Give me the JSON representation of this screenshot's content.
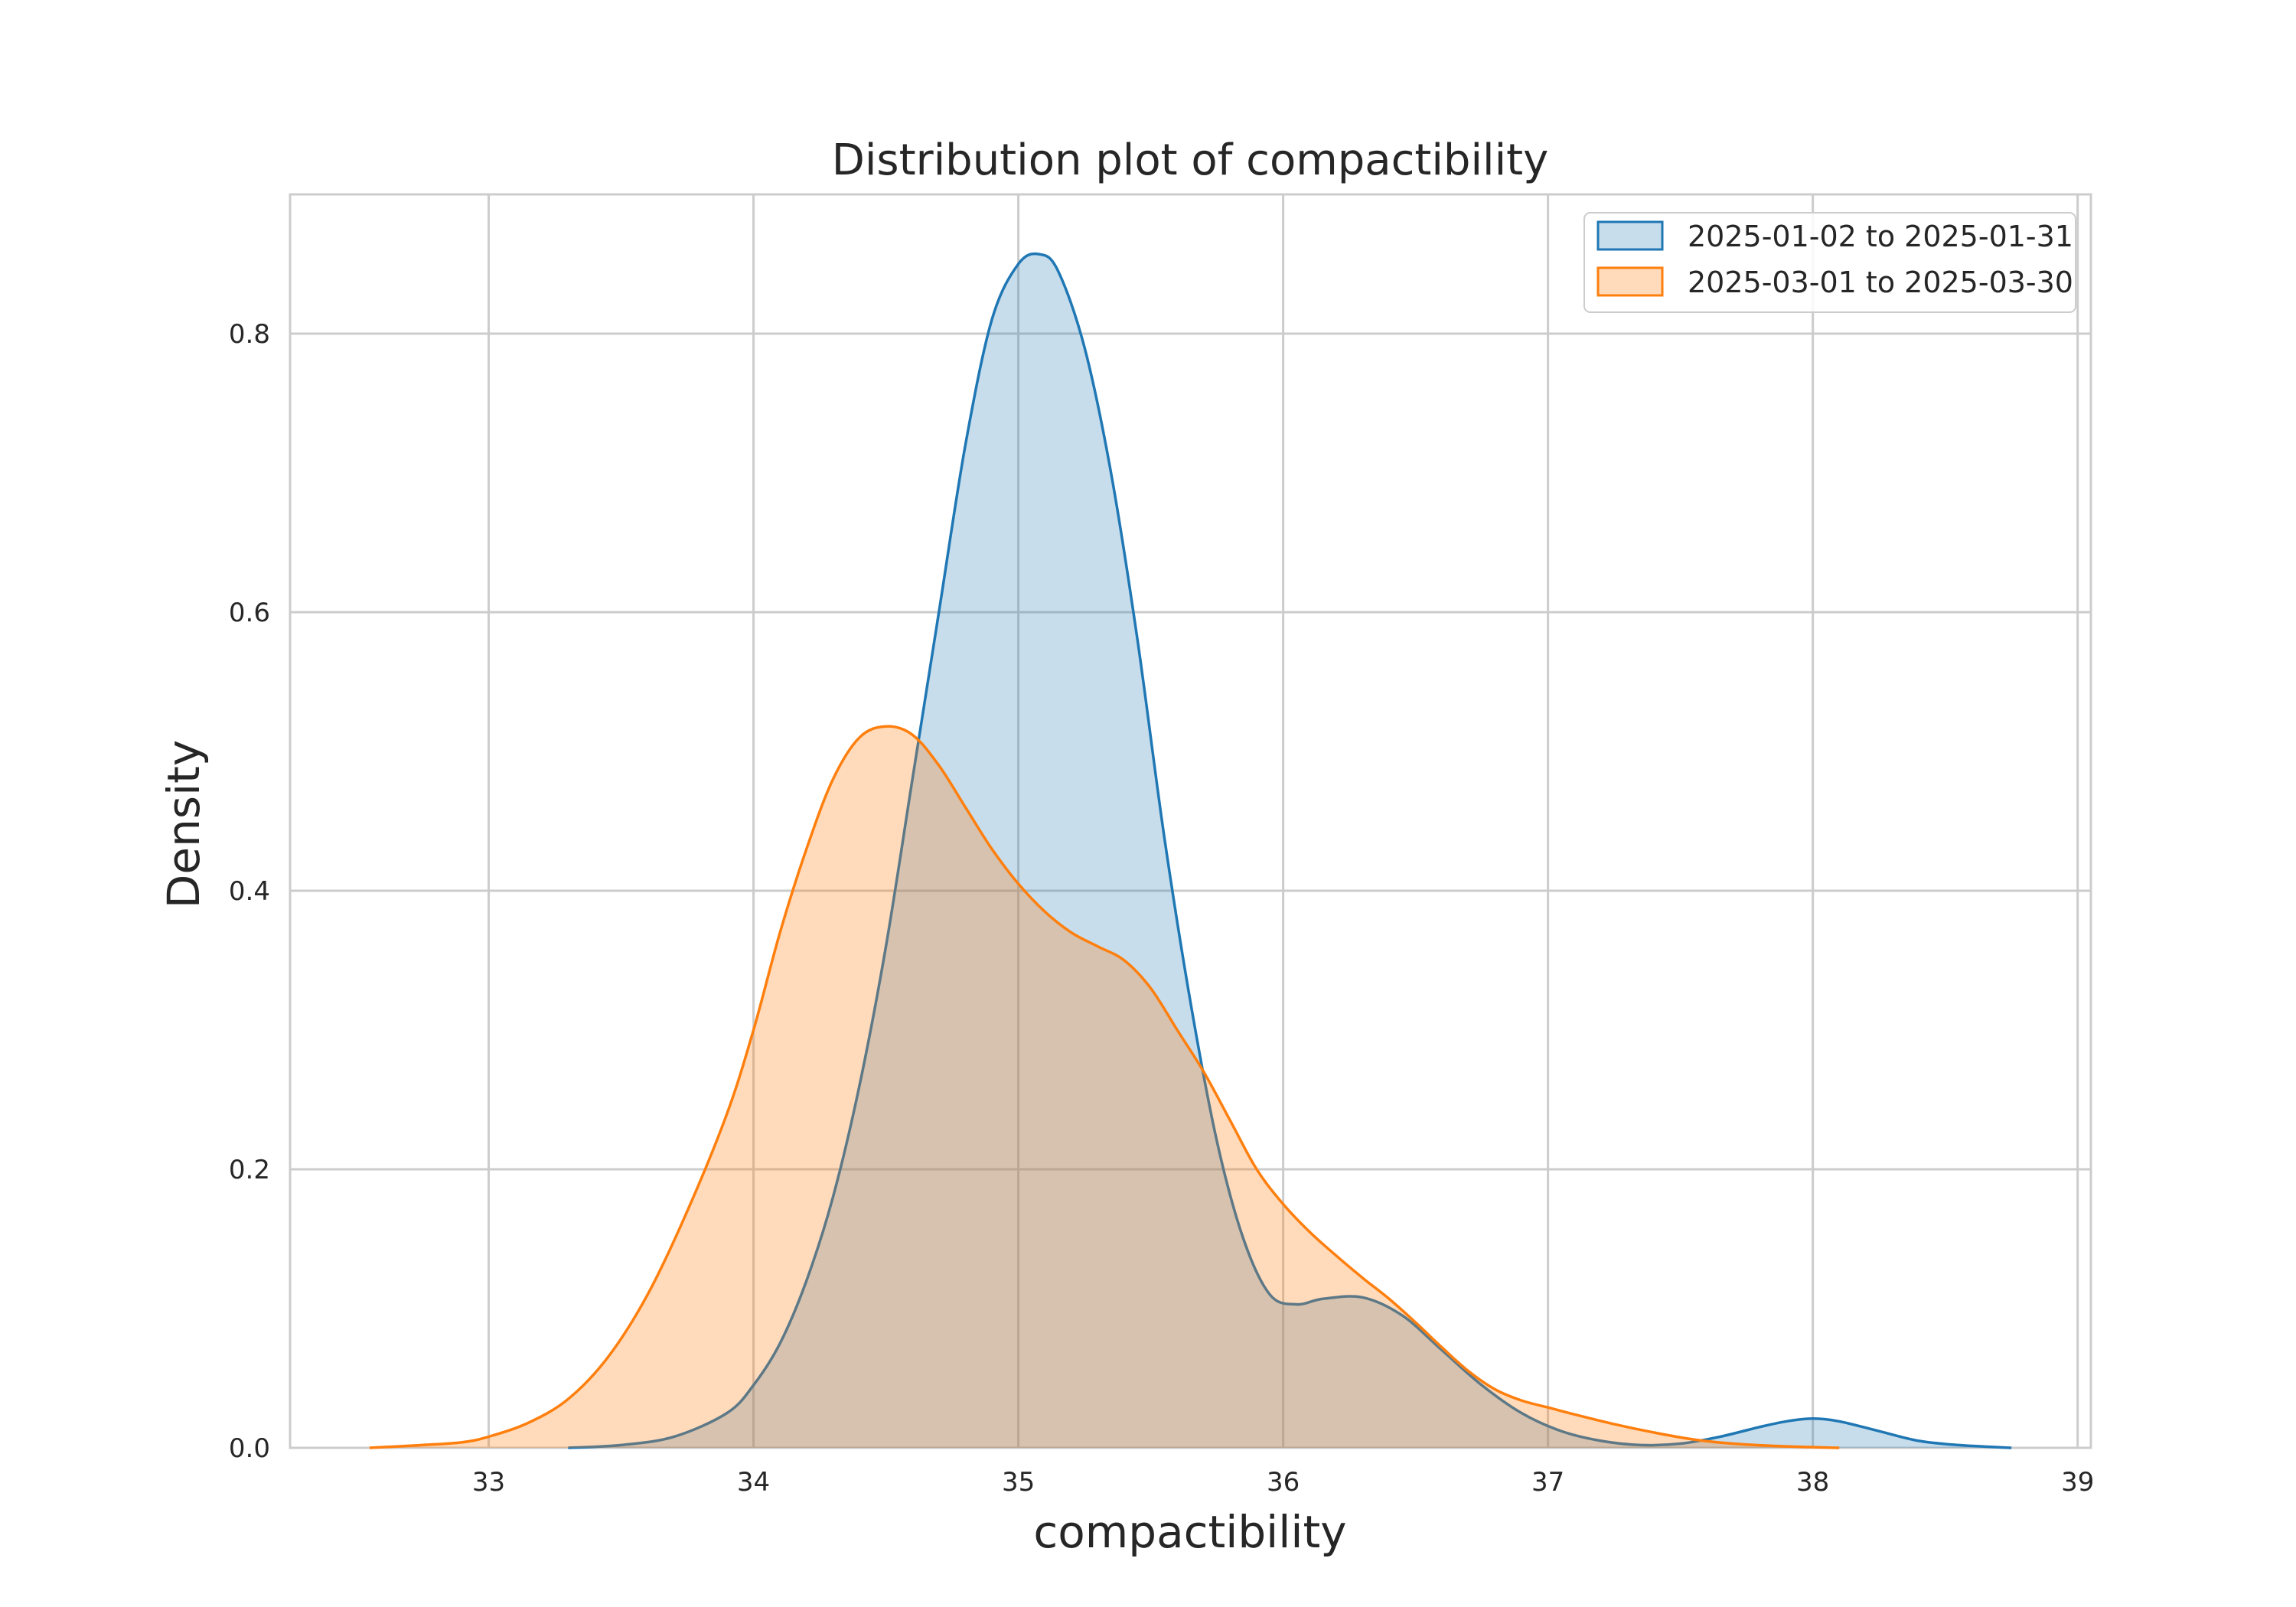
{
  "chart_data": {
    "type": "area",
    "title": "Distribution plot of compactibility",
    "xlabel": "compactibility",
    "ylabel": "Density",
    "xlim": [
      32.25,
      39.05
    ],
    "ylim": [
      0,
      0.9
    ],
    "x_ticks": [
      "33",
      "34",
      "35",
      "36",
      "37",
      "38",
      "39"
    ],
    "y_ticks": [
      "0.0",
      "0.2",
      "0.4",
      "0.6",
      "0.8"
    ],
    "grid": true,
    "legend_position": "top-right",
    "series": [
      {
        "name": "2025-01-02 to 2025-01-31",
        "color": "#1f77b4",
        "fill_opacity": 0.25,
        "points": [
          [
            33.3,
            0.0
          ],
          [
            33.5,
            0.002
          ],
          [
            33.7,
            0.008
          ],
          [
            33.9,
            0.025
          ],
          [
            34.0,
            0.045
          ],
          [
            34.1,
            0.075
          ],
          [
            34.2,
            0.12
          ],
          [
            34.3,
            0.18
          ],
          [
            34.4,
            0.26
          ],
          [
            34.5,
            0.36
          ],
          [
            34.6,
            0.48
          ],
          [
            34.7,
            0.6
          ],
          [
            34.8,
            0.72
          ],
          [
            34.9,
            0.81
          ],
          [
            35.0,
            0.85
          ],
          [
            35.08,
            0.857
          ],
          [
            35.15,
            0.845
          ],
          [
            35.25,
            0.79
          ],
          [
            35.35,
            0.7
          ],
          [
            35.45,
            0.58
          ],
          [
            35.55,
            0.44
          ],
          [
            35.65,
            0.32
          ],
          [
            35.75,
            0.22
          ],
          [
            35.85,
            0.15
          ],
          [
            35.95,
            0.11
          ],
          [
            36.05,
            0.103
          ],
          [
            36.15,
            0.107
          ],
          [
            36.3,
            0.108
          ],
          [
            36.45,
            0.095
          ],
          [
            36.6,
            0.07
          ],
          [
            36.75,
            0.045
          ],
          [
            36.9,
            0.025
          ],
          [
            37.05,
            0.012
          ],
          [
            37.2,
            0.005
          ],
          [
            37.35,
            0.002
          ],
          [
            37.5,
            0.003
          ],
          [
            37.65,
            0.008
          ],
          [
            37.8,
            0.015
          ],
          [
            37.9,
            0.019
          ],
          [
            38.0,
            0.021
          ],
          [
            38.1,
            0.019
          ],
          [
            38.25,
            0.012
          ],
          [
            38.4,
            0.005
          ],
          [
            38.55,
            0.002
          ],
          [
            38.75,
            0.0
          ]
        ]
      },
      {
        "name": "2025-03-01 to 2025-03-30",
        "color": "#ff7f0e",
        "fill_opacity": 0.28,
        "points": [
          [
            32.55,
            0.0
          ],
          [
            32.75,
            0.002
          ],
          [
            32.9,
            0.004
          ],
          [
            33.0,
            0.008
          ],
          [
            33.15,
            0.018
          ],
          [
            33.3,
            0.035
          ],
          [
            33.45,
            0.065
          ],
          [
            33.6,
            0.11
          ],
          [
            33.75,
            0.17
          ],
          [
            33.9,
            0.24
          ],
          [
            34.0,
            0.3
          ],
          [
            34.1,
            0.37
          ],
          [
            34.2,
            0.43
          ],
          [
            34.3,
            0.48
          ],
          [
            34.4,
            0.51
          ],
          [
            34.5,
            0.518
          ],
          [
            34.6,
            0.512
          ],
          [
            34.7,
            0.49
          ],
          [
            34.8,
            0.46
          ],
          [
            34.9,
            0.43
          ],
          [
            35.0,
            0.405
          ],
          [
            35.1,
            0.385
          ],
          [
            35.2,
            0.37
          ],
          [
            35.3,
            0.36
          ],
          [
            35.4,
            0.35
          ],
          [
            35.5,
            0.33
          ],
          [
            35.6,
            0.3
          ],
          [
            35.7,
            0.27
          ],
          [
            35.8,
            0.235
          ],
          [
            35.9,
            0.2
          ],
          [
            36.0,
            0.175
          ],
          [
            36.1,
            0.155
          ],
          [
            36.2,
            0.138
          ],
          [
            36.3,
            0.122
          ],
          [
            36.4,
            0.107
          ],
          [
            36.5,
            0.09
          ],
          [
            36.6,
            0.072
          ],
          [
            36.7,
            0.055
          ],
          [
            36.8,
            0.042
          ],
          [
            36.9,
            0.034
          ],
          [
            37.0,
            0.029
          ],
          [
            37.1,
            0.024
          ],
          [
            37.25,
            0.017
          ],
          [
            37.4,
            0.011
          ],
          [
            37.55,
            0.006
          ],
          [
            37.7,
            0.003
          ],
          [
            37.9,
            0.001
          ],
          [
            38.1,
            0.0
          ]
        ]
      }
    ]
  }
}
